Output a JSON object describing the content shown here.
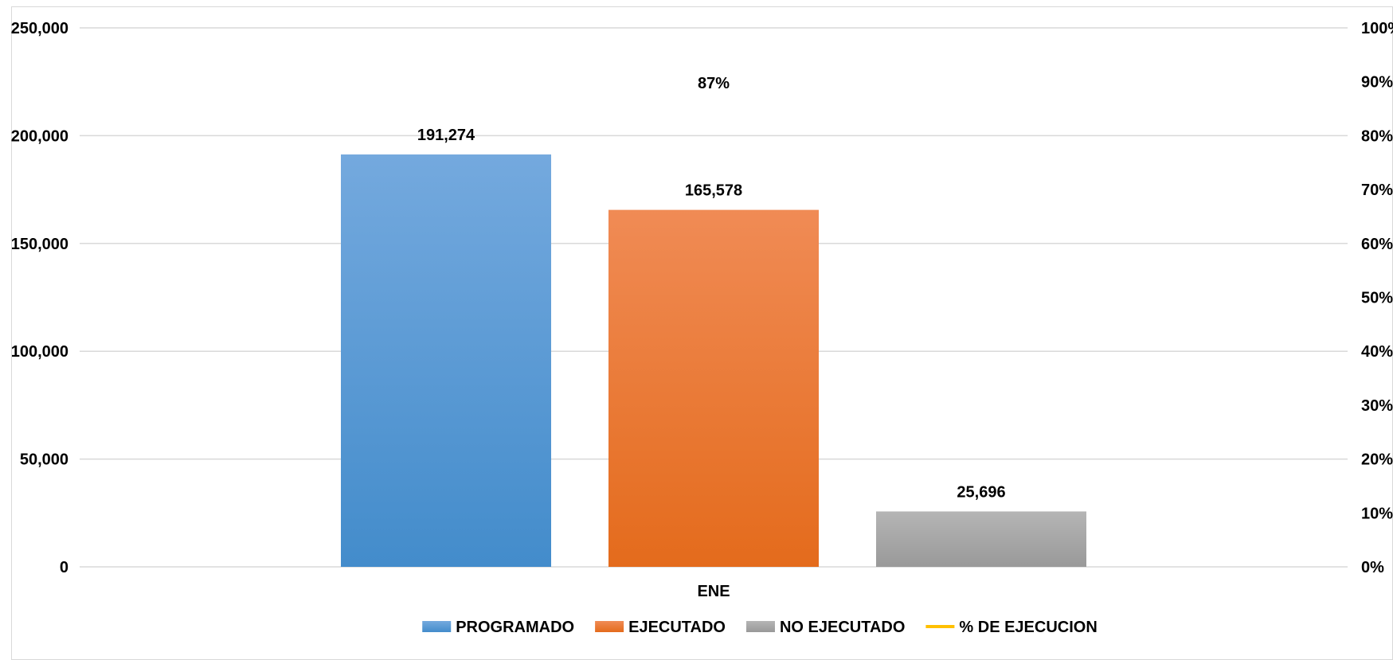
{
  "chart_data": {
    "type": "bar",
    "categories": [
      "ENE"
    ],
    "series": [
      {
        "name": "PROGRAMADO",
        "values": [
          191274
        ],
        "labels": [
          "191,274"
        ],
        "color": "#5b9bd5",
        "axis": "left"
      },
      {
        "name": "EJECUTADO",
        "values": [
          165578
        ],
        "labels": [
          "165,578"
        ],
        "color": "#ed7d31",
        "axis": "left"
      },
      {
        "name": "NO EJECUTADO",
        "values": [
          25696
        ],
        "labels": [
          "25,696"
        ],
        "color": "#a5a5a5",
        "axis": "left"
      },
      {
        "name": "% DE EJECUCION",
        "values": [
          0.87
        ],
        "labels": [
          "87%"
        ],
        "color": "#ffc000",
        "axis": "right",
        "kind": "line"
      }
    ],
    "y_left": {
      "min": 0,
      "max": 250000,
      "ticks": [
        "0",
        "50,000",
        "100,000",
        "150,000",
        "200,000",
        "250,000"
      ]
    },
    "y_right": {
      "min": 0,
      "max": 1,
      "ticks": [
        "0%",
        "10%",
        "20%",
        "30%",
        "40%",
        "50%",
        "60%",
        "70%",
        "80%",
        "90%",
        "100%"
      ]
    },
    "grid": true,
    "legend_position": "bottom"
  }
}
